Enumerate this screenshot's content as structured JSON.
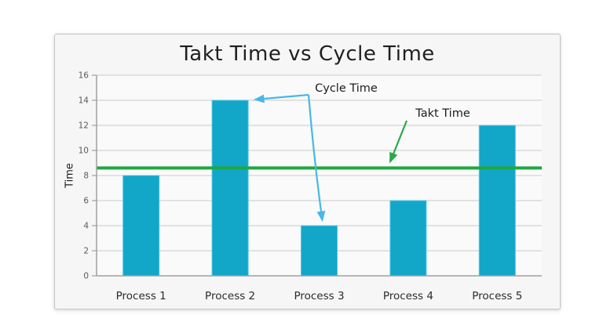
{
  "chart_data": {
    "type": "bar",
    "title": "Takt Time vs Cycle Time",
    "categories": [
      "Process 1",
      "Process 2",
      "Process 3",
      "Process 4",
      "Process 5"
    ],
    "values": [
      8,
      14,
      4,
      6,
      12
    ],
    "xlabel": "",
    "ylabel": "Time",
    "ylim": [
      0,
      16
    ],
    "yticks": [
      0,
      2,
      4,
      6,
      8,
      10,
      12,
      14,
      16
    ],
    "grid": true,
    "legend_position": "none",
    "takt_line": {
      "label": "Takt Time",
      "value": 8.6
    },
    "annotations": [
      {
        "label": "Cycle Time",
        "targets": [
          "Process 2",
          "Process 3"
        ]
      },
      {
        "label": "Takt Time",
        "targets": [
          "takt-line"
        ]
      }
    ],
    "colors": {
      "bar": "#12a6c9",
      "bar_edge": "#4ec7e2",
      "takt_line": "#1fa840",
      "cycle_arrow": "#45b8e8",
      "takt_arrow": "#2aa947",
      "grid": "#c9c9c9",
      "axis": "#a0a0a0",
      "tick_label": "#5a5a5a",
      "category_label": "#2b2b2b",
      "title": "#1f1f1f",
      "card_background": "#f6f6f6",
      "plot_background": "#fafafa"
    }
  }
}
